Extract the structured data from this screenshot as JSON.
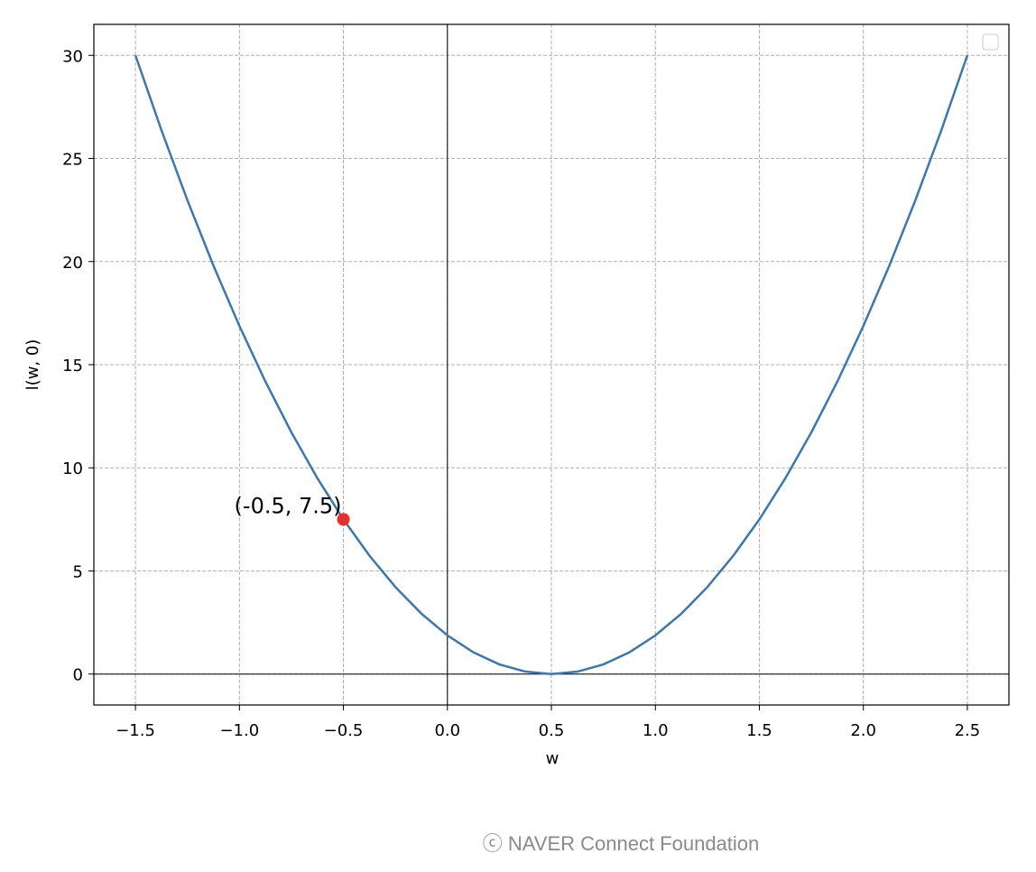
{
  "chart_data": {
    "type": "line",
    "xlabel": "w",
    "ylabel": "l(w, 0)",
    "xlim": [
      -1.7,
      2.7
    ],
    "ylim": [
      -1.5,
      31.5
    ],
    "xticks": [
      {
        "value": -1.5,
        "label": "−1.5"
      },
      {
        "value": -1.0,
        "label": "−1.0"
      },
      {
        "value": -0.5,
        "label": "−0.5"
      },
      {
        "value": 0,
        "label": "0.0"
      },
      0.5,
      {
        "value": 1,
        "label": "1.0"
      },
      1.5,
      {
        "value": 2,
        "label": "2.0"
      },
      2.5
    ],
    "yticks": [
      0,
      5,
      10,
      15,
      20,
      25,
      30
    ],
    "grid": true,
    "series": [
      {
        "type": "line",
        "color": "#3b78b0",
        "x": [
          -1.5,
          -1.375,
          -1.25,
          -1.125,
          -1.0,
          -0.875,
          -0.75,
          -0.625,
          -0.5,
          -0.375,
          -0.25,
          -0.125,
          0,
          0.125,
          0.25,
          0.375,
          0.5,
          0.625,
          0.75,
          0.875,
          1.0,
          1.125,
          1.25,
          1.375,
          1.5,
          1.625,
          1.75,
          1.875,
          2.0,
          2.125,
          2.25,
          2.375,
          2.5
        ],
        "values": [
          30,
          26.3671875,
          22.96875,
          19.8046875,
          16.875,
          14.1796875,
          11.71875,
          9.4921875,
          7.5,
          5.7421875,
          4.21875,
          2.9296875,
          1.875,
          1.0546875,
          0.46875,
          0.1171875,
          0,
          0.1171875,
          0.46875,
          1.0546875,
          1.875,
          2.9296875,
          4.21875,
          5.7421875,
          7.5,
          9.4921875,
          11.71875,
          14.1796875,
          16.875,
          19.8046875,
          22.96875,
          26.3671875,
          30
        ]
      },
      {
        "type": "scatter",
        "color": "#e8302a",
        "x": [
          -0.5
        ],
        "values": [
          7.5
        ],
        "annotations": [
          "(-0.5, 7.5)"
        ]
      }
    ]
  },
  "footer": "ⓒ  NAVER Connect Foundation"
}
